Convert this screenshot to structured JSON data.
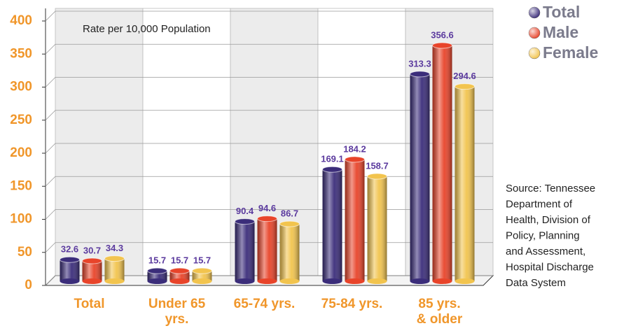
{
  "chart_data": {
    "type": "bar",
    "annotation": "Rate per 10,000 Population",
    "source": [
      "Source: Tennessee",
      "Department of",
      "Health, Division of",
      "Policy, Planning",
      "and Assessment,",
      "Hospital Discharge",
      "Data System"
    ],
    "categories": [
      "Total",
      "Under 65\nyrs.",
      "65-74 yrs.",
      "75-84 yrs.",
      "85 yrs.\n& older"
    ],
    "series": [
      {
        "name": "Total",
        "color": "#3b2d7a",
        "values": [
          32.6,
          15.7,
          90.4,
          169.1,
          313.3
        ]
      },
      {
        "name": "Male",
        "color": "#e8442a",
        "values": [
          30.7,
          15.7,
          94.6,
          184.2,
          356.6
        ]
      },
      {
        "name": "Female",
        "color": "#f2c44e",
        "values": [
          34.3,
          15.7,
          86.7,
          158.7,
          294.6
        ]
      }
    ],
    "ylim": [
      0,
      400
    ],
    "yticks": [
      0,
      50,
      100,
      150,
      200,
      250,
      300,
      350,
      400
    ],
    "grid": true,
    "legend": "top-right"
  }
}
